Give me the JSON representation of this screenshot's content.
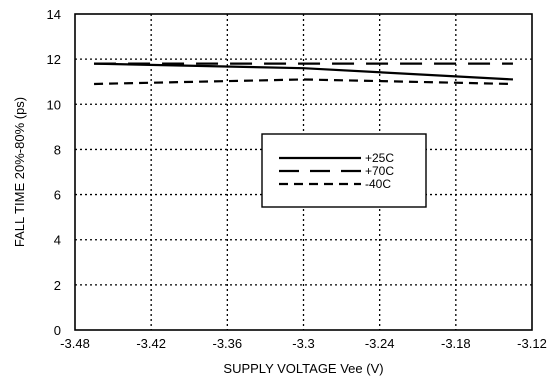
{
  "chart_data": {
    "type": "line",
    "xlabel": "SUPPLY VOLTAGE Vee (V)",
    "ylabel": "FALL TIME 20%-80% (ps)",
    "xlim": [
      -3.48,
      -3.12
    ],
    "ylim": [
      0,
      14
    ],
    "x_ticks": [
      -3.48,
      -3.42,
      -3.36,
      -3.3,
      -3.24,
      -3.18,
      -3.12
    ],
    "x_tick_labels": [
      "-3.48",
      "-3.42",
      "-3.36",
      "-3.3",
      "-3.24",
      "-3.18",
      "-3.12"
    ],
    "y_ticks": [
      0,
      2,
      4,
      6,
      8,
      10,
      12,
      14
    ],
    "y_tick_labels": [
      "0",
      "2",
      "4",
      "6",
      "8",
      "10",
      "12",
      "14"
    ],
    "grid": true,
    "grid_style": "dotted",
    "legend_position": "center-right",
    "series": [
      {
        "name": "+25C",
        "style": "solid",
        "x": [
          -3.465,
          -3.3,
          -3.135
        ],
        "y": [
          11.8,
          11.6,
          11.1
        ]
      },
      {
        "name": "+70C",
        "style": "long-dash",
        "x": [
          -3.465,
          -3.3,
          -3.135
        ],
        "y": [
          11.8,
          11.8,
          11.8
        ]
      },
      {
        "name": "-40C",
        "style": "short-dash",
        "x": [
          -3.465,
          -3.3,
          -3.135
        ],
        "y": [
          10.9,
          11.1,
          10.9
        ]
      }
    ],
    "colors": {
      "line": "#000000",
      "background": "#ffffff"
    }
  }
}
